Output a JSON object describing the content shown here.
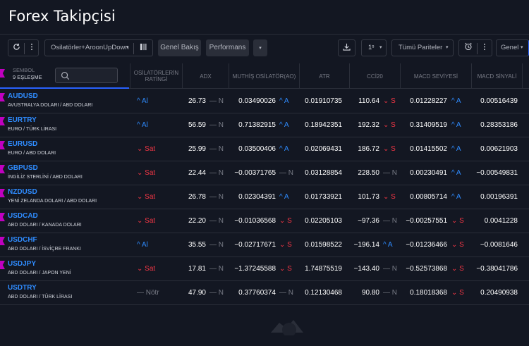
{
  "title": "Forex Takipçisi",
  "toolbar": {
    "refresh_icon": "refresh-icon",
    "more_icon": "vertical-dots-icon",
    "columns_label": "Osilatörler+AroonUpDown",
    "columns_caret": "▾",
    "tab_overview": "Genel Bakış",
    "tab_performance": "Performans",
    "more_tabs_caret": "▾",
    "export_icon": "download-icon",
    "interval_label": "1ˢ",
    "interval_caret": "▾",
    "pairs_label": "Tümü Pariteler",
    "pairs_caret": "▾",
    "alarm_icon": "alarm-clock-icon",
    "general_label": "Genel",
    "general_caret": "▾"
  },
  "header": {
    "symbol_title": "SEMBOL",
    "match_count": "9 EŞLEŞME",
    "columns": [
      "OSİLATÖRLERİN RATİNGİ",
      "ADX",
      "MUTHİŞ OSİLATÖR(AO)",
      "ATR",
      "CCİ20",
      "MACD SEVİYESİ",
      "MACD SİNYALİ"
    ]
  },
  "rows": [
    {
      "symbol": "AUDUSD",
      "desc": "AVUSTRALYA DOLARI / ABD DOLARI",
      "rating": "^ Al",
      "rating_dir": "up",
      "adx": "26.73",
      "adx_sig": "— N",
      "adx_dir": "nt",
      "ao": "0.03490026",
      "ao_sig": "^ A",
      "ao_dir": "up",
      "atr": "0.01910735",
      "cci": "110.64",
      "cci_sig": "⌄ S",
      "cci_dir": "dn",
      "macd": "0.01228227",
      "macd_sig": "^ A",
      "macd_dir": "up",
      "macds": "0.00516439"
    },
    {
      "symbol": "EURTRY",
      "desc": "EURO / TÜRK LİRASI",
      "rating": "^ Al",
      "rating_dir": "up",
      "adx": "56.59",
      "adx_sig": "— N",
      "adx_dir": "nt",
      "ao": "0.71382915",
      "ao_sig": "^ A",
      "ao_dir": "up",
      "atr": "0.18942351",
      "cci": "192.32",
      "cci_sig": "⌄ S",
      "cci_dir": "dn",
      "macd": "0.31409519",
      "macd_sig": "^ A",
      "macd_dir": "up",
      "macds": "0.28353186"
    },
    {
      "symbol": "EURUSD",
      "desc": "EURO / ABD DOLARI",
      "rating": "⌄ Sat",
      "rating_dir": "dn",
      "adx": "25.99",
      "adx_sig": "— N",
      "adx_dir": "nt",
      "ao": "0.03500406",
      "ao_sig": "^ A",
      "ao_dir": "up",
      "atr": "0.02069431",
      "cci": "186.72",
      "cci_sig": "⌄ S",
      "cci_dir": "dn",
      "macd": "0.01415502",
      "macd_sig": "^ A",
      "macd_dir": "up",
      "macds": "0.00621903"
    },
    {
      "symbol": "GBPUSD",
      "desc": "İNGİLİZ STERLİNİ / ABD DOLARI",
      "rating": "⌄ Sat",
      "rating_dir": "dn",
      "adx": "22.44",
      "adx_sig": "— N",
      "adx_dir": "nt",
      "ao": "−0.00371765",
      "ao_sig": "— N",
      "ao_dir": "nt",
      "atr": "0.03128854",
      "cci": "228.50",
      "cci_sig": "— N",
      "cci_dir": "nt",
      "macd": "0.00230491",
      "macd_sig": "^ A",
      "macd_dir": "up",
      "macds": "−0.00549831"
    },
    {
      "symbol": "NZDUSD",
      "desc": "YENİ ZELANDA DOLARI / ABD DOLARI",
      "rating": "⌄ Sat",
      "rating_dir": "dn",
      "adx": "26.78",
      "adx_sig": "— N",
      "adx_dir": "nt",
      "ao": "0.02304391",
      "ao_sig": "^ A",
      "ao_dir": "up",
      "atr": "0.01733921",
      "cci": "101.73",
      "cci_sig": "⌄ S",
      "cci_dir": "dn",
      "macd": "0.00805714",
      "macd_sig": "^ A",
      "macd_dir": "up",
      "macds": "0.00196391"
    },
    {
      "symbol": "USDCAD",
      "desc": "ABD DOLARI / KANADA DOLARI",
      "rating": "⌄ Sat",
      "rating_dir": "dn",
      "adx": "22.20",
      "adx_sig": "— N",
      "adx_dir": "nt",
      "ao": "−0.01036568",
      "ao_sig": "⌄ S",
      "ao_dir": "dn",
      "atr": "0.02205103",
      "cci": "−97.36",
      "cci_sig": "— N",
      "cci_dir": "nt",
      "macd": "−0.00257551",
      "macd_sig": "⌄ S",
      "macd_dir": "dn",
      "macds": "0.0041228"
    },
    {
      "symbol": "USDCHF",
      "desc": "ABD DOLARI / İSVİÇRE FRANKI",
      "rating": "^ Al",
      "rating_dir": "up",
      "adx": "35.55",
      "adx_sig": "— N",
      "adx_dir": "nt",
      "ao": "−0.02717671",
      "ao_sig": "⌄ S",
      "ao_dir": "dn",
      "atr": "0.01598522",
      "cci": "−196.14",
      "cci_sig": "^ A",
      "cci_dir": "up",
      "macd": "−0.01236466",
      "macd_sig": "⌄ S",
      "macd_dir": "dn",
      "macds": "−0.0081646"
    },
    {
      "symbol": "USDJPY",
      "desc": "ABD DOLARI / JAPON YENİ",
      "rating": "⌄ Sat",
      "rating_dir": "dn",
      "adx": "17.81",
      "adx_sig": "— N",
      "adx_dir": "nt",
      "ao": "−1.37245588",
      "ao_sig": "⌄ S",
      "ao_dir": "dn",
      "atr": "1.74875519",
      "cci": "−143.40",
      "cci_sig": "— N",
      "cci_dir": "nt",
      "macd": "−0.52573868",
      "macd_sig": "⌄ S",
      "macd_dir": "dn",
      "macds": "−0.38041786"
    },
    {
      "symbol": "USDTRY",
      "desc": "ABD DOLARI / TÜRK LİRASI",
      "rating": "— Nötr",
      "rating_dir": "nt",
      "adx": "47.90",
      "adx_sig": "— N",
      "adx_dir": "nt",
      "ao": "0.37760374",
      "ao_sig": "— N",
      "ao_dir": "nt",
      "atr": "0.12130468",
      "cci": "90.80",
      "cci_sig": "— N",
      "cci_dir": "nt",
      "macd": "0.18018368",
      "macd_sig": "⌄ S",
      "macd_dir": "dn",
      "macds": "0.20490938"
    }
  ],
  "colors": {
    "background": "#131722",
    "accent": "#2962ff",
    "up": "#2f8cff",
    "down": "#f23645",
    "neutral": "#787b86",
    "flag": "#c000c0"
  }
}
